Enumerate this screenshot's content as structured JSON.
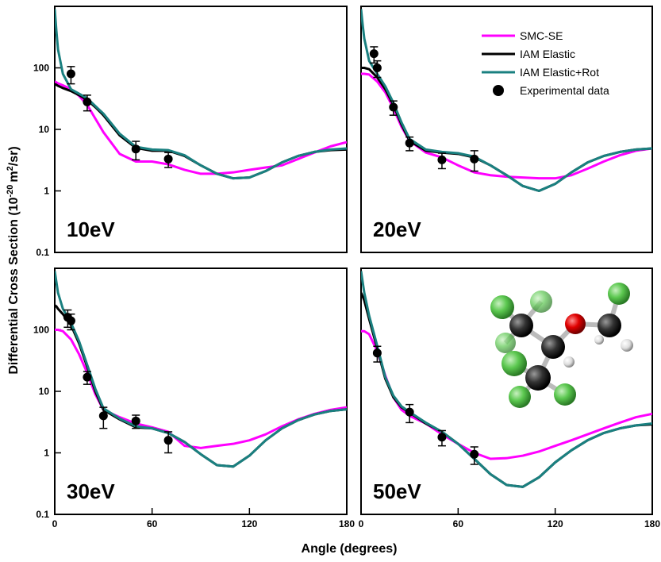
{
  "xlabel": "Angle (degrees)",
  "ylabel": [
    "Differential Cross Section (10",
    "-20",
    "m",
    "2",
    "/sr)"
  ],
  "chart_data": [
    {
      "type": "line",
      "label": "10eV",
      "yscale": "log",
      "xlim": [
        0,
        180
      ],
      "ylim": [
        0.1,
        1000
      ],
      "yticks": [
        0.1,
        1,
        10,
        100
      ],
      "x": [
        0,
        1,
        2,
        5,
        10,
        15,
        20,
        25,
        30,
        40,
        50,
        60,
        70,
        80,
        90,
        100,
        110,
        120,
        130,
        140,
        150,
        160,
        170,
        180
      ],
      "series": [
        {
          "color": "#ff00ff",
          "values": [
            60,
            58,
            56,
            52,
            45,
            35,
            25,
            15,
            9,
            4,
            3,
            3,
            2.7,
            2.2,
            1.9,
            1.9,
            2.0,
            2.2,
            2.4,
            2.6,
            3.3,
            4.2,
            5.3,
            6.2
          ]
        },
        {
          "color": "#000000",
          "values": [
            55,
            53,
            51,
            47,
            42,
            36,
            30,
            23,
            17,
            8,
            5,
            4.5,
            4.5,
            3.7,
            2.6,
            1.9,
            1.6,
            1.65,
            2.1,
            2.9,
            3.7,
            4.3,
            4.6,
            4.7
          ]
        },
        {
          "color": "#1a8080",
          "values": [
            900,
            400,
            200,
            80,
            45,
            38,
            32,
            24,
            18,
            8.5,
            5.2,
            4.7,
            4.6,
            3.8,
            2.6,
            1.9,
            1.6,
            1.65,
            2.1,
            2.9,
            3.7,
            4.3,
            4.7,
            4.9
          ]
        }
      ],
      "experimental": {
        "color": "#000000",
        "x": [
          10,
          20,
          50,
          70
        ],
        "values": [
          80,
          28,
          4.8,
          3.3
        ],
        "errors": [
          25,
          8,
          1.6,
          0.9
        ]
      }
    },
    {
      "type": "line",
      "label": "20eV",
      "yscale": "log",
      "xlim": [
        0,
        180
      ],
      "ylim": [
        0.1,
        1000
      ],
      "x": [
        0,
        1,
        2,
        5,
        10,
        15,
        20,
        25,
        30,
        40,
        50,
        60,
        70,
        80,
        90,
        100,
        110,
        120,
        130,
        140,
        150,
        160,
        170,
        180
      ],
      "series": [
        {
          "name": "SMC-SE",
          "color": "#ff00ff",
          "values": [
            80,
            80,
            80,
            78,
            60,
            40,
            22,
            11,
            6.5,
            4.2,
            3.5,
            2.6,
            2.0,
            1.8,
            1.7,
            1.65,
            1.6,
            1.6,
            1.8,
            2.3,
            3.0,
            3.8,
            4.5,
            4.9
          ]
        },
        {
          "name": "IAM  Elastic",
          "color": "#000000",
          "values": [
            100,
            100,
            100,
            95,
            70,
            45,
            25,
            12,
            6.5,
            4.5,
            4.2,
            4.0,
            3.5,
            2.6,
            1.8,
            1.2,
            1.0,
            1.3,
            2.0,
            2.9,
            3.7,
            4.3,
            4.7,
            4.9
          ]
        },
        {
          "name": "IAM  Elastic+Rot",
          "color": "#1a8080",
          "values": [
            900,
            500,
            300,
            130,
            80,
            50,
            27,
            13,
            7,
            4.7,
            4.3,
            4.1,
            3.6,
            2.6,
            1.8,
            1.2,
            1.0,
            1.3,
            2.0,
            2.9,
            3.7,
            4.3,
            4.7,
            4.9
          ]
        }
      ],
      "experimental": {
        "name": "Experimental data",
        "color": "#000000",
        "x": [
          8,
          10,
          20,
          30,
          50,
          70
        ],
        "values": [
          170,
          100,
          23,
          6,
          3.2,
          3.3
        ],
        "errors": [
          50,
          30,
          6,
          1.5,
          0.9,
          1.2
        ]
      },
      "legend": "upper right"
    },
    {
      "type": "line",
      "label": "30eV",
      "yscale": "log",
      "xlim": [
        0,
        180
      ],
      "ylim": [
        0.1,
        1000
      ],
      "yticks": [
        0.1,
        1,
        10,
        100
      ],
      "xticks": [
        0,
        60,
        120,
        180
      ],
      "x": [
        0,
        1,
        2,
        5,
        10,
        15,
        20,
        25,
        30,
        40,
        50,
        60,
        70,
        80,
        90,
        100,
        110,
        120,
        130,
        140,
        150,
        160,
        170,
        180
      ],
      "series": [
        {
          "color": "#ff00ff",
          "values": [
            100,
            100,
            100,
            95,
            70,
            40,
            20,
            9,
            5,
            3.8,
            3,
            2.6,
            2.2,
            1.3,
            1.2,
            1.3,
            1.4,
            1.6,
            2.0,
            2.7,
            3.5,
            4.3,
            5,
            5.5
          ]
        },
        {
          "color": "#000000",
          "values": [
            250,
            240,
            220,
            180,
            120,
            60,
            25,
            10,
            5,
            3.5,
            2.6,
            2.5,
            2.1,
            1.5,
            0.95,
            0.63,
            0.6,
            0.9,
            1.6,
            2.5,
            3.4,
            4.2,
            4.8,
            5.1
          ]
        },
        {
          "color": "#1a8080",
          "values": [
            900,
            600,
            400,
            220,
            130,
            65,
            27,
            11,
            5.3,
            3.6,
            2.7,
            2.5,
            2.1,
            1.5,
            0.95,
            0.63,
            0.6,
            0.9,
            1.6,
            2.5,
            3.4,
            4.2,
            4.8,
            5.1
          ]
        }
      ],
      "experimental": {
        "color": "#000000",
        "x": [
          8,
          10,
          20,
          30,
          50,
          70
        ],
        "values": [
          160,
          140,
          17,
          4,
          3.3,
          1.6
        ],
        "errors": [
          50,
          40,
          4,
          1.5,
          0.8,
          0.6
        ]
      }
    },
    {
      "type": "line",
      "label": "50eV",
      "yscale": "log",
      "xlim": [
        0,
        180
      ],
      "ylim": [
        0.1,
        1000
      ],
      "xticks": [
        0,
        60,
        120,
        180
      ],
      "x": [
        0,
        1,
        2,
        5,
        10,
        15,
        20,
        25,
        30,
        40,
        50,
        60,
        70,
        80,
        90,
        100,
        110,
        120,
        130,
        140,
        150,
        160,
        170,
        180
      ],
      "series": [
        {
          "color": "#ff00ff",
          "values": [
            95,
            95,
            95,
            85,
            45,
            18,
            8,
            5,
            4,
            3,
            2,
            1.4,
            1.0,
            0.8,
            0.82,
            0.9,
            1.05,
            1.3,
            1.6,
            2.0,
            2.5,
            3.1,
            3.8,
            4.3
          ]
        },
        {
          "color": "#000000",
          "values": [
            400,
            350,
            300,
            150,
            50,
            16,
            8,
            5.5,
            4.5,
            3,
            2.2,
            1.4,
            0.8,
            0.45,
            0.3,
            0.28,
            0.4,
            0.7,
            1.1,
            1.6,
            2.1,
            2.5,
            2.8,
            2.9
          ]
        },
        {
          "color": "#1a8080",
          "values": [
            900,
            600,
            400,
            170,
            55,
            17,
            8.5,
            5.7,
            4.6,
            3.1,
            2.2,
            1.4,
            0.8,
            0.45,
            0.3,
            0.28,
            0.4,
            0.7,
            1.1,
            1.6,
            2.1,
            2.5,
            2.8,
            3.0
          ]
        }
      ],
      "experimental": {
        "color": "#000000",
        "x": [
          10,
          30,
          50,
          70
        ],
        "values": [
          42,
          4.6,
          1.8,
          0.95
        ],
        "errors": [
          12,
          1.5,
          0.5,
          0.3
        ]
      }
    }
  ]
}
